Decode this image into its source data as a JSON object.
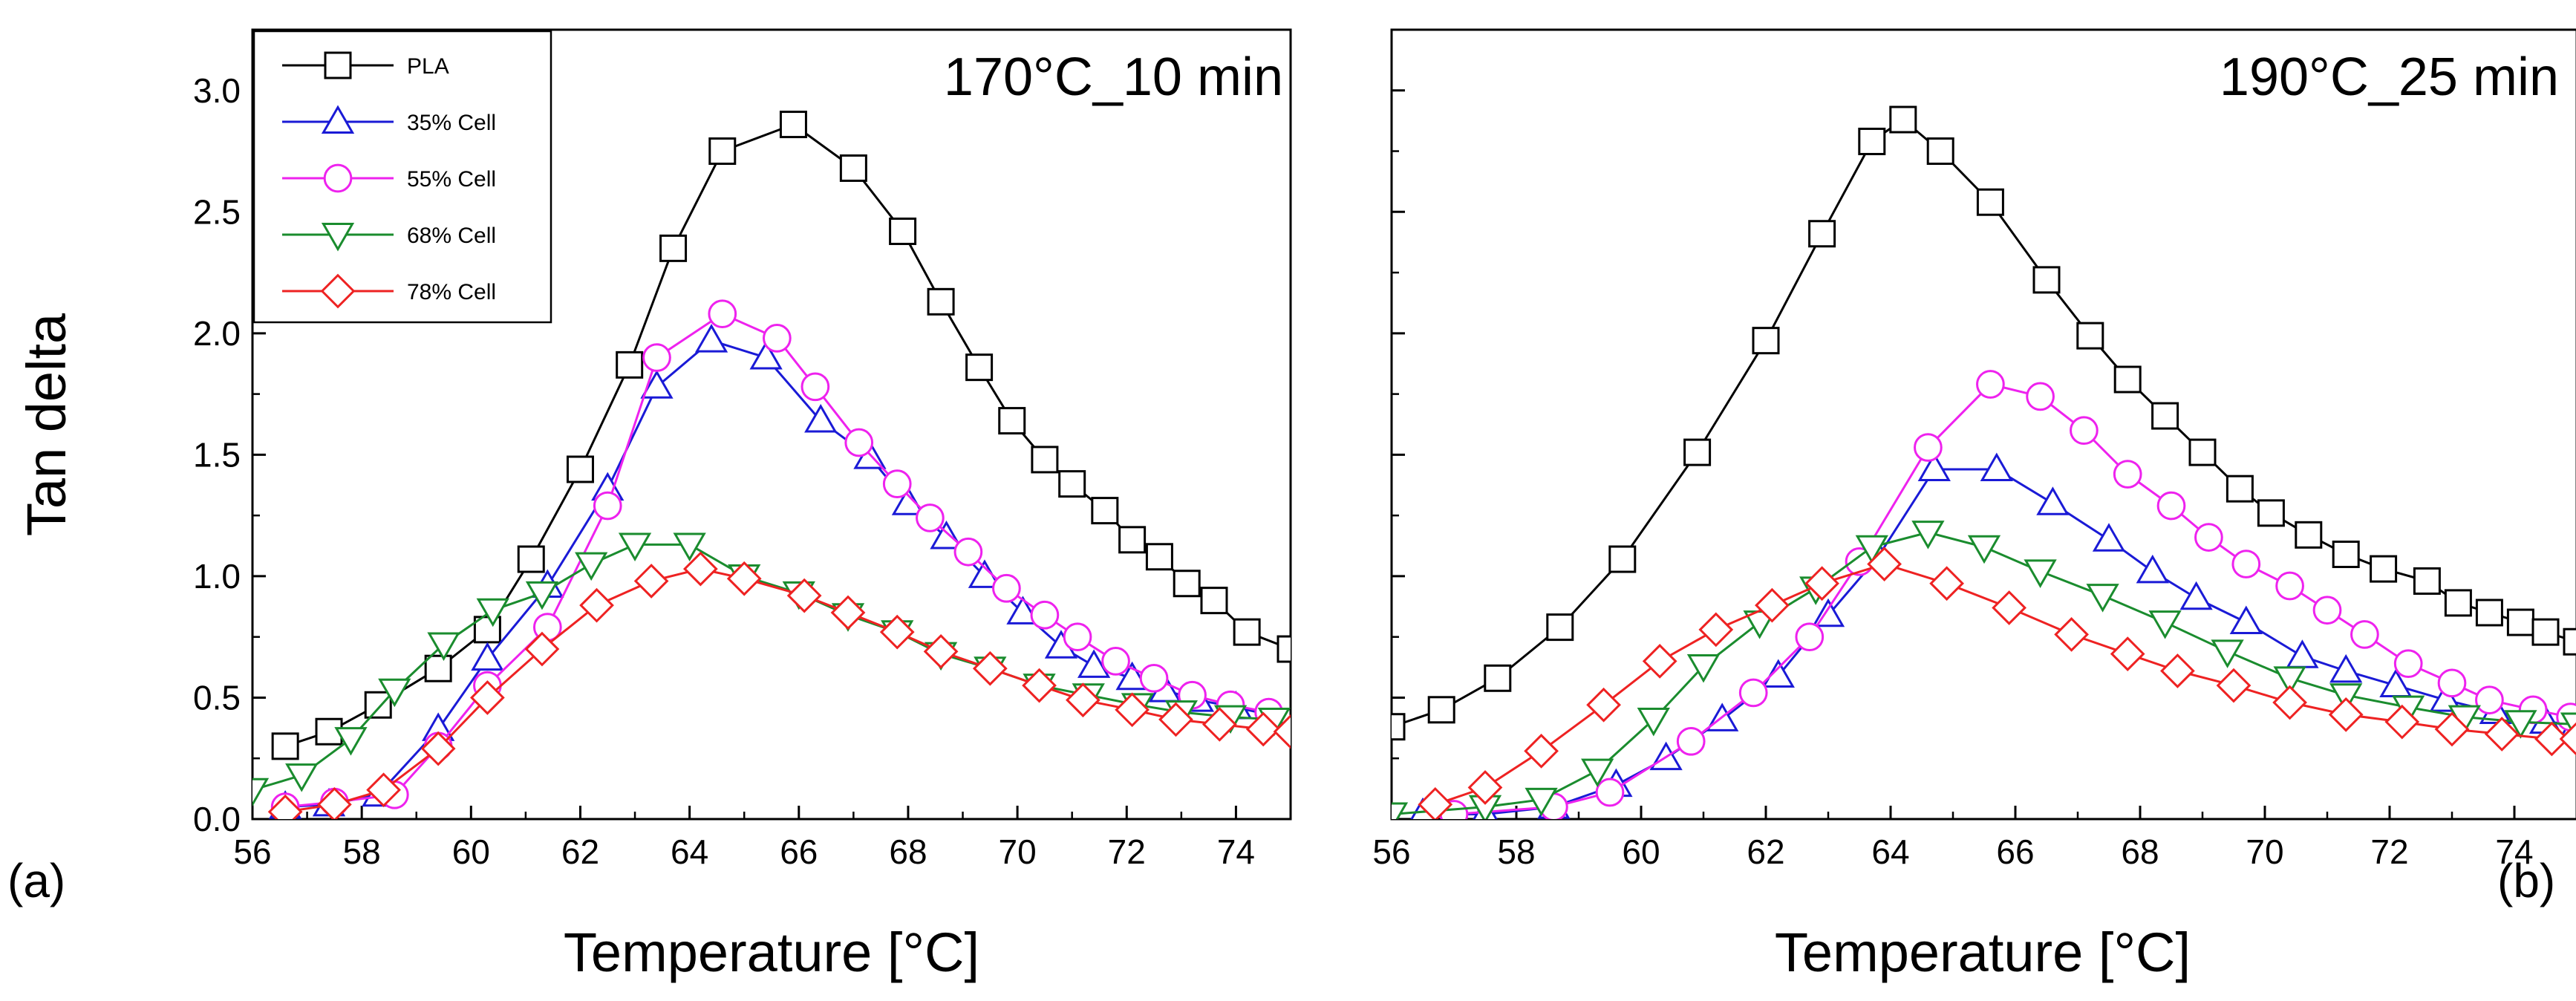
{
  "figure": {
    "ylabel": "Tan delta",
    "xlabel": "Temperature [°C]",
    "legend_location": "top-left of panel (a)",
    "x_ticks": [
      "56",
      "58",
      "60",
      "62",
      "64",
      "66",
      "68",
      "70",
      "72",
      "74"
    ],
    "y_ticks": [
      "0.0",
      "0.5",
      "1.0",
      "1.5",
      "2.0",
      "2.5",
      "3.0"
    ]
  },
  "chart_data": [
    {
      "type": "line",
      "panel": "(a)",
      "title": "170°C_10 min",
      "xlabel": "Temperature [°C]",
      "ylabel": "Tan delta",
      "xlim": [
        56,
        75
      ],
      "ylim": [
        0,
        3.25
      ],
      "series": [
        {
          "name": "PLA",
          "color": "#000000",
          "marker": "square",
          "x": [
            56.6,
            57.4,
            58.3,
            59.4,
            60.3,
            61.1,
            62.0,
            62.9,
            63.7,
            64.6,
            65.9,
            67.0,
            67.9,
            68.6,
            69.3,
            69.9,
            70.5,
            71.0,
            71.6,
            72.1,
            72.6,
            73.1,
            73.6,
            74.2,
            75.0
          ],
          "y": [
            0.3,
            0.36,
            0.47,
            0.62,
            0.78,
            1.07,
            1.44,
            1.87,
            2.35,
            2.75,
            2.86,
            2.68,
            2.42,
            2.13,
            1.86,
            1.64,
            1.48,
            1.38,
            1.27,
            1.15,
            1.08,
            0.97,
            0.9,
            0.77,
            0.7
          ]
        },
        {
          "name": "35% Cell",
          "color": "#1a1ad6",
          "marker": "triangle-up",
          "x": [
            56.6,
            57.4,
            58.3,
            59.4,
            60.3,
            61.4,
            62.5,
            63.4,
            64.4,
            65.4,
            66.4,
            67.3,
            68.0,
            68.7,
            69.4,
            70.1,
            70.8,
            71.4,
            72.1,
            72.7,
            73.3,
            74.0,
            74.6
          ],
          "y": [
            0.05,
            0.06,
            0.1,
            0.37,
            0.66,
            0.96,
            1.36,
            1.78,
            1.97,
            1.9,
            1.64,
            1.49,
            1.3,
            1.16,
            1.0,
            0.85,
            0.71,
            0.63,
            0.58,
            0.53,
            0.49,
            0.46,
            0.43
          ]
        },
        {
          "name": "55% Cell",
          "color": "#ee22ee",
          "marker": "circle",
          "x": [
            56.6,
            57.5,
            58.6,
            59.4,
            60.3,
            61.4,
            62.5,
            63.4,
            64.6,
            65.6,
            66.3,
            67.1,
            67.8,
            68.4,
            69.1,
            69.8,
            70.5,
            71.1,
            71.8,
            72.5,
            73.2,
            73.9,
            74.6
          ],
          "y": [
            0.05,
            0.07,
            0.1,
            0.3,
            0.55,
            0.79,
            1.29,
            1.9,
            2.08,
            1.98,
            1.78,
            1.55,
            1.38,
            1.24,
            1.1,
            0.95,
            0.84,
            0.75,
            0.65,
            0.58,
            0.51,
            0.47,
            0.44
          ]
        },
        {
          "name": "68% Cell",
          "color": "#1a8c2e",
          "marker": "triangle-down",
          "x": [
            56.0,
            56.9,
            57.8,
            58.6,
            59.5,
            60.4,
            61.3,
            62.2,
            63.0,
            64.0,
            65.0,
            66.0,
            66.9,
            67.8,
            68.6,
            69.5,
            70.4,
            71.3,
            72.2,
            73.0,
            73.9,
            74.7
          ],
          "y": [
            0.12,
            0.18,
            0.33,
            0.53,
            0.72,
            0.86,
            0.93,
            1.05,
            1.13,
            1.13,
            1.0,
            0.93,
            0.84,
            0.77,
            0.68,
            0.62,
            0.55,
            0.51,
            0.47,
            0.44,
            0.42,
            0.41
          ]
        },
        {
          "name": "78% Cell",
          "color": "#ee2222",
          "marker": "diamond",
          "x": [
            56.6,
            57.5,
            58.4,
            59.4,
            60.3,
            61.3,
            62.3,
            63.3,
            64.2,
            65.0,
            66.1,
            66.9,
            67.8,
            68.6,
            69.5,
            70.4,
            71.2,
            72.1,
            72.9,
            73.7,
            74.5,
            75.0
          ],
          "y": [
            0.03,
            0.06,
            0.12,
            0.29,
            0.5,
            0.7,
            0.88,
            0.98,
            1.03,
            0.99,
            0.92,
            0.85,
            0.77,
            0.69,
            0.62,
            0.55,
            0.49,
            0.45,
            0.41,
            0.39,
            0.37,
            0.36
          ]
        }
      ]
    },
    {
      "type": "line",
      "panel": "(b)",
      "title": "190°C_25 min",
      "xlabel": "Temperature [°C]",
      "ylabel": "Tan delta",
      "xlim": [
        56,
        75
      ],
      "ylim": [
        0,
        3.25
      ],
      "series": [
        {
          "name": "PLA",
          "color": "#000000",
          "marker": "square",
          "x": [
            56.0,
            56.8,
            57.7,
            58.7,
            59.7,
            60.9,
            62.0,
            62.9,
            63.7,
            64.2,
            64.8,
            65.6,
            66.5,
            67.2,
            67.8,
            68.4,
            69.0,
            69.6,
            70.1,
            70.7,
            71.3,
            71.9,
            72.6,
            73.1,
            73.6,
            74.1,
            74.5,
            75.0
          ],
          "y": [
            0.38,
            0.45,
            0.58,
            0.79,
            1.07,
            1.51,
            1.97,
            2.41,
            2.79,
            2.88,
            2.75,
            2.54,
            2.22,
            1.99,
            1.81,
            1.66,
            1.51,
            1.36,
            1.26,
            1.17,
            1.09,
            1.03,
            0.98,
            0.89,
            0.85,
            0.81,
            0.77,
            0.73
          ]
        },
        {
          "name": "35% Cell",
          "color": "#1a1ad6",
          "marker": "triangle-up",
          "x": [
            56.5,
            57.5,
            58.6,
            59.6,
            60.4,
            61.3,
            62.2,
            63.0,
            63.8,
            64.7,
            65.7,
            66.6,
            67.5,
            68.2,
            68.9,
            69.7,
            70.6,
            71.3,
            72.1,
            72.9,
            73.7,
            74.5,
            75.0
          ],
          "y": [
            0.02,
            0.02,
            0.05,
            0.14,
            0.25,
            0.41,
            0.59,
            0.84,
            1.08,
            1.44,
            1.44,
            1.3,
            1.15,
            1.02,
            0.91,
            0.81,
            0.67,
            0.61,
            0.55,
            0.49,
            0.44,
            0.4,
            0.39
          ]
        },
        {
          "name": "55% Cell",
          "color": "#ee22ee",
          "marker": "circle",
          "x": [
            57.0,
            58.6,
            59.5,
            60.8,
            61.8,
            62.7,
            63.5,
            64.6,
            65.6,
            66.4,
            67.1,
            67.8,
            68.5,
            69.1,
            69.7,
            70.4,
            71.0,
            71.6,
            72.3,
            73.0,
            73.6,
            74.3,
            74.9
          ],
          "y": [
            0.02,
            0.05,
            0.11,
            0.32,
            0.52,
            0.75,
            1.06,
            1.53,
            1.79,
            1.74,
            1.6,
            1.42,
            1.29,
            1.16,
            1.05,
            0.96,
            0.86,
            0.76,
            0.64,
            0.56,
            0.49,
            0.45,
            0.42
          ]
        },
        {
          "name": "68% Cell",
          "color": "#1a8c2e",
          "marker": "triangle-down",
          "x": [
            56.0,
            57.5,
            58.4,
            59.3,
            60.2,
            61.0,
            61.9,
            62.8,
            63.7,
            64.6,
            65.5,
            66.4,
            67.4,
            68.4,
            69.4,
            70.4,
            71.3,
            72.3,
            73.2,
            74.1,
            75.0
          ],
          "y": [
            0.02,
            0.05,
            0.08,
            0.2,
            0.41,
            0.63,
            0.81,
            0.95,
            1.12,
            1.18,
            1.12,
            1.02,
            0.92,
            0.81,
            0.69,
            0.58,
            0.51,
            0.46,
            0.42,
            0.4,
            0.39
          ]
        },
        {
          "name": "78% Cell",
          "color": "#ee2222",
          "marker": "diamond",
          "x": [
            56.7,
            57.5,
            58.4,
            59.4,
            60.3,
            61.2,
            62.1,
            62.9,
            63.9,
            64.9,
            65.9,
            66.9,
            67.8,
            68.6,
            69.5,
            70.4,
            71.3,
            72.2,
            73.0,
            73.8,
            74.6,
            75.0
          ],
          "y": [
            0.06,
            0.13,
            0.28,
            0.47,
            0.65,
            0.78,
            0.88,
            0.97,
            1.05,
            0.97,
            0.87,
            0.76,
            0.68,
            0.61,
            0.55,
            0.48,
            0.43,
            0.4,
            0.37,
            0.35,
            0.33,
            0.33
          ]
        }
      ]
    }
  ]
}
